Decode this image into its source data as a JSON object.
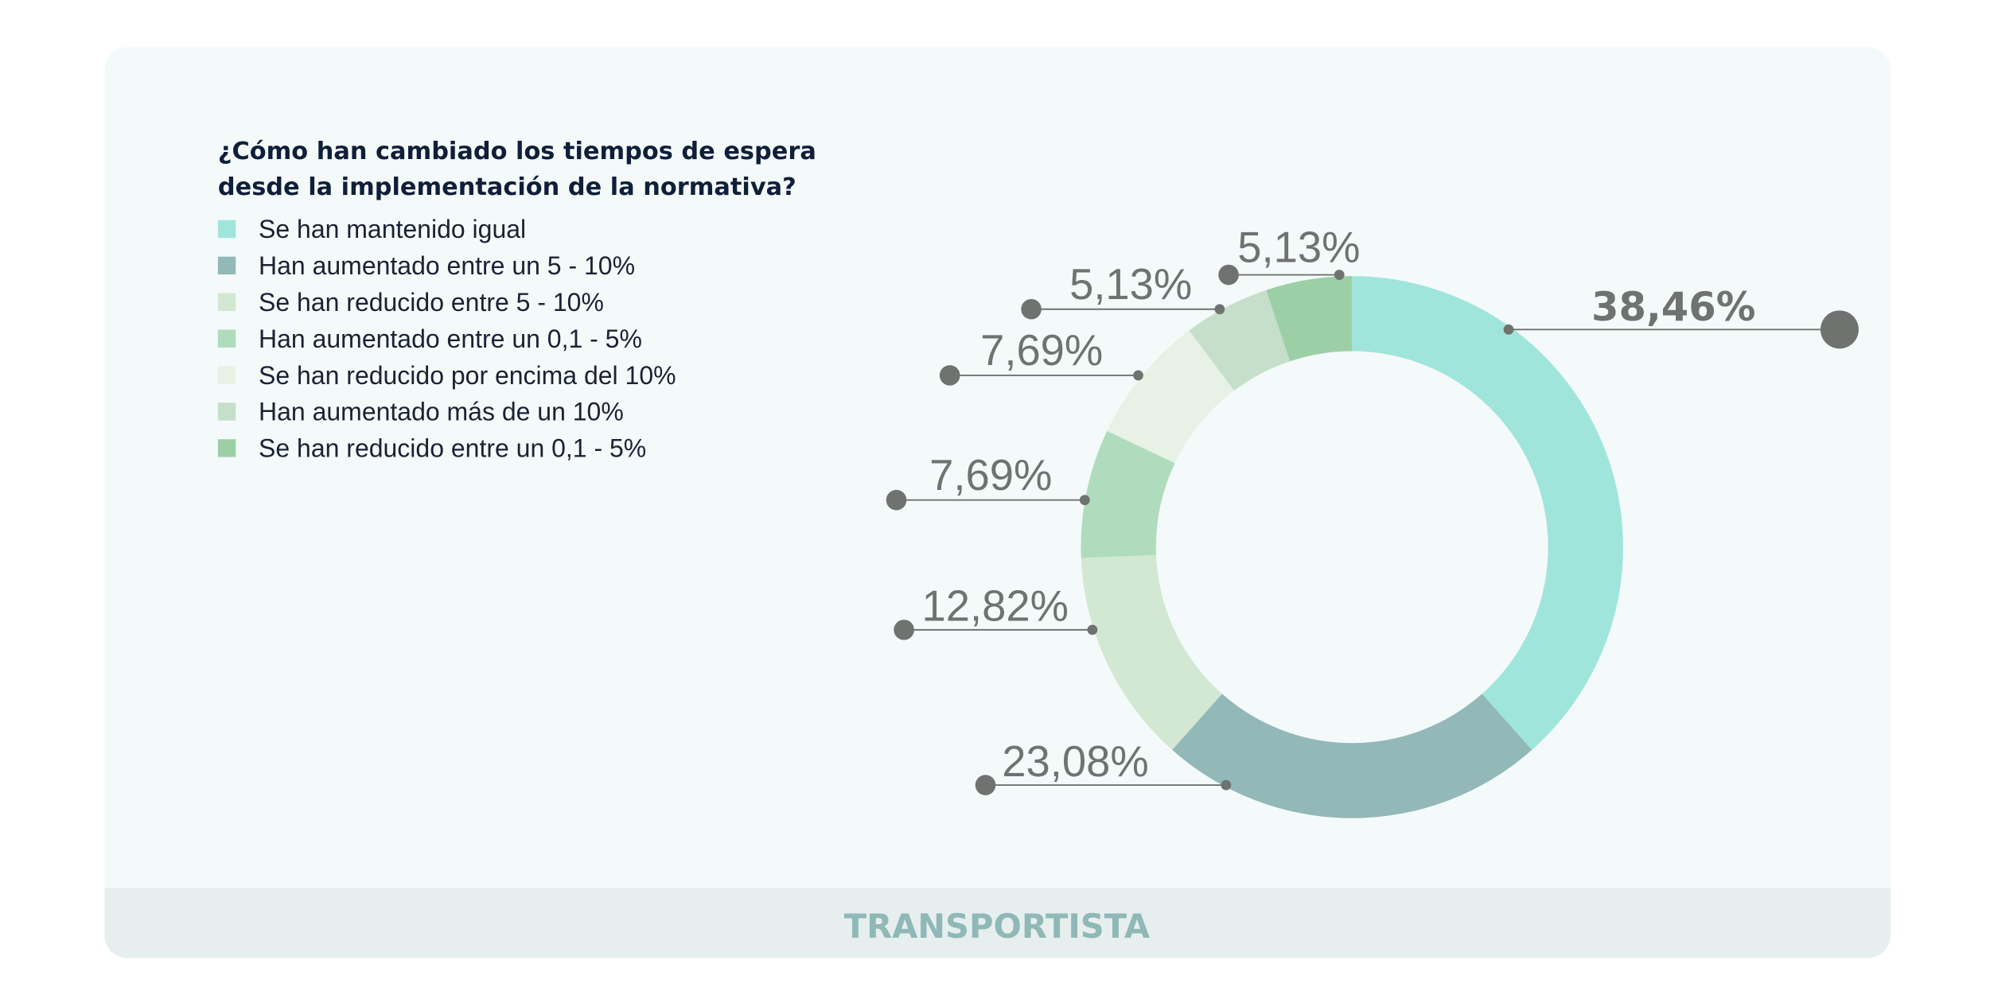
{
  "chart_data": {
    "type": "pie",
    "donut": true,
    "title": "¿Cómo han cambiado los tiempos de espera desde la implementación de la normativa?",
    "title_lines": [
      "¿Cómo han cambiado los tiempos de espera",
      "desde la implementación de la normativa?"
    ],
    "legend_position": "top-left",
    "slices": [
      {
        "label": "Se han mantenido igual",
        "value": 38.46,
        "display": "38,46%",
        "color": "#a0e5dc"
      },
      {
        "label": "Han aumentado entre un 5 - 10%",
        "value": 23.08,
        "display": "23,08%",
        "color": "#92b8b7"
      },
      {
        "label": "Se han reducido entre 5 - 10%",
        "value": 12.82,
        "display": "12,82%",
        "color": "#d2e8d3"
      },
      {
        "label": "Han aumentado entre un 0,1 - 5%",
        "value": 7.69,
        "display": "7,69%",
        "color": "#afdcbc"
      },
      {
        "label": "Se han reducido por encima del 10%",
        "value": 7.69,
        "display": "7,69%",
        "color": "#e7f1e6"
      },
      {
        "label": "Han aumentado más de un 10%",
        "value": 5.13,
        "display": "5,13%",
        "color": "#c5dfca"
      },
      {
        "label": "Se han reducido entre un 0,1 - 5%",
        "value": 5.13,
        "display": "5,13%",
        "color": "#9dcfa6"
      }
    ]
  },
  "footer": {
    "label": "TRANSPORTISTA"
  },
  "colors": {
    "card": "#f4fafa",
    "footer_band": "#e6efee",
    "footer_text": "#8fb8b6",
    "leader": "#6f7370"
  }
}
